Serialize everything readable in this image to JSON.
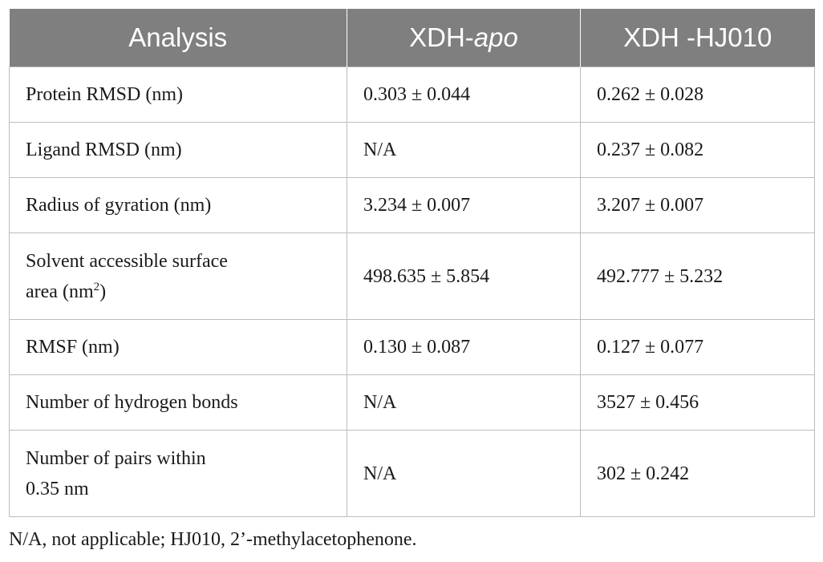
{
  "table": {
    "headers": {
      "analysis": "Analysis",
      "apo_prefix": "XDH-",
      "apo_italic": "apo",
      "hj010": "XDH -HJ010"
    },
    "rows": [
      {
        "label": "Protein RMSD (nm)",
        "apo": "0.303 ± 0.044",
        "hj010": "0.262 ± 0.028"
      },
      {
        "label": "Ligand RMSD (nm)",
        "apo": "N/A",
        "hj010": "0.237 ± 0.082"
      },
      {
        "label": "Radius of gyration (nm)",
        "apo": "3.234 ± 0.007",
        "hj010": "3.207 ± 0.007"
      },
      {
        "label_line1": "Solvent accessible surface",
        "label_line2_pre": "area (nm",
        "label_sup": "2",
        "label_line2_post": ")",
        "apo": "498.635 ± 5.854",
        "hj010": "492.777 ± 5.232"
      },
      {
        "label": "RMSF (nm)",
        "apo": "0.130 ± 0.087",
        "hj010": "0.127 ± 0.077"
      },
      {
        "label": "Number of hydrogen bonds",
        "apo": "N/A",
        "hj010": "3527 ± 0.456"
      },
      {
        "label_line1": "Number of pairs within",
        "label_line2": "0.35 nm",
        "apo": "N/A",
        "hj010": "302 ± 0.242"
      }
    ]
  },
  "footnote": "N/A, not applicable; HJ010, 2’-methylacetophenone."
}
